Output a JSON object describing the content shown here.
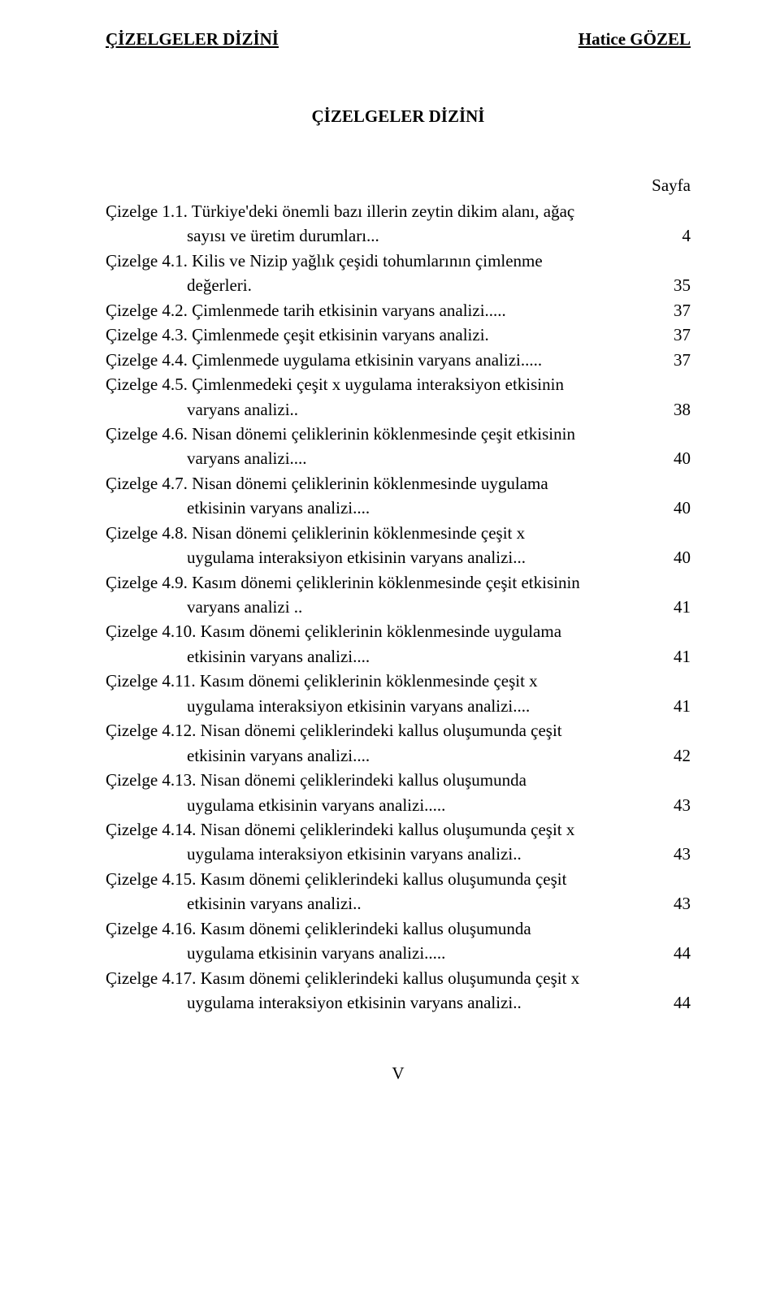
{
  "header": {
    "left": "ÇİZELGELER DİZİNİ",
    "right": "Hatice GÖZEL"
  },
  "title": "ÇİZELGELER DİZİNİ",
  "sayfa_label": "Sayfa",
  "entries": [
    {
      "line1": "Çizelge 1.1. Türkiye'deki önemli bazı illerin zeytin dikim alanı, ağaç",
      "line2": "sayısı   ve üretim durumları...",
      "page": "4"
    },
    {
      "line1": "Çizelge 4.1. Kilis ve Nizip yağlık çeşidi tohumlarının çimlenme",
      "line2": "değerleri.",
      "page": "35"
    },
    {
      "line1": "Çizelge 4.2. Çimlenmede tarih etkisinin varyans analizi.....",
      "line2": "",
      "page": "37"
    },
    {
      "line1": "Çizelge 4.3. Çimlenmede çeşit etkisinin varyans analizi.",
      "line2": "",
      "page": "37"
    },
    {
      "line1": "Çizelge 4.4. Çimlenmede uygulama etkisinin varyans analizi.....",
      "line2": "",
      "page": "37"
    },
    {
      "line1": "Çizelge 4.5. Çimlenmedeki çeşit x uygulama interaksiyon etkisinin",
      "line2": "varyans analizi..",
      "page": "38"
    },
    {
      "line1": "Çizelge 4.6. Nisan dönemi çeliklerinin köklenmesinde çeşit etkisinin",
      "line2": "varyans analizi....",
      "page": "40"
    },
    {
      "line1": "Çizelge 4.7. Nisan dönemi çeliklerinin köklenmesinde uygulama",
      "line2": "etkisinin varyans analizi....",
      "page": "40"
    },
    {
      "line1": "Çizelge 4.8. Nisan dönemi çeliklerinin köklenmesinde çeşit x",
      "line2": "uygulama interaksiyon etkisinin varyans analizi...",
      "page": "40"
    },
    {
      "line1": "Çizelge 4.9. Kasım dönemi çeliklerinin köklenmesinde çeşit etkisinin",
      "line2": "varyans analizi ..",
      "page": "41"
    },
    {
      "line1": "Çizelge 4.10. Kasım dönemi çeliklerinin köklenmesinde uygulama",
      "line2": "etkisinin varyans analizi....",
      "page": "41"
    },
    {
      "line1": "Çizelge 4.11. Kasım dönemi çeliklerinin köklenmesinde çeşit x",
      "line2": "uygulama interaksiyon etkisinin varyans analizi....",
      "page": "41"
    },
    {
      "line1": "Çizelge 4.12. Nisan dönemi çeliklerindeki kallus oluşumunda çeşit",
      "line2": "etkisinin varyans analizi....",
      "page": "42"
    },
    {
      "line1": "Çizelge 4.13. Nisan dönemi çeliklerindeki kallus oluşumunda",
      "line2": "uygulama etkisinin varyans analizi.....",
      "page": "43"
    },
    {
      "line1": "Çizelge 4.14. Nisan dönemi çeliklerindeki kallus oluşumunda çeşit x",
      "line2": "uygulama interaksiyon etkisinin varyans analizi..",
      "page": "43"
    },
    {
      "line1": "Çizelge 4.15. Kasım dönemi çeliklerindeki kallus oluşumunda çeşit",
      "line2": "etkisinin varyans analizi..",
      "page": "43"
    },
    {
      "line1": "Çizelge 4.16. Kasım dönemi çeliklerindeki kallus oluşumunda",
      "line2": "uygulama etkisinin varyans analizi.....",
      "page": "44"
    },
    {
      "line1": "Çizelge 4.17. Kasım dönemi çeliklerindeki kallus oluşumunda çeşit x",
      "line2": "uygulama interaksiyon etkisinin varyans analizi..",
      "page": "44"
    }
  ],
  "footer": "V"
}
